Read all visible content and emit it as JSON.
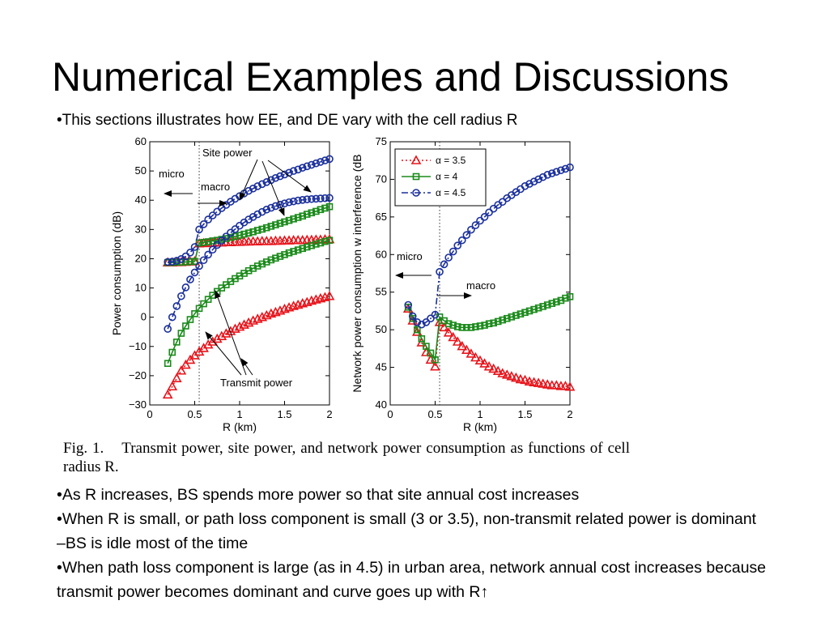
{
  "slide": {
    "title": "Numerical Examples and Discussions",
    "bullet_intro": "•This sections illustrates how EE, and DE vary with the cell radius R",
    "bullets": [
      "•As R increases, BS spends more power so that site annual cost increases",
      "•When R is small, or path loss component is small (3 or 3.5), non-transmit related power is dominant –BS is idle most of the time",
      "•When path loss component is large (as in 4.5) in urban area, network annual cost increases because transmit power becomes dominant and curve goes up with R↑"
    ]
  },
  "figure": {
    "caption_number": "Fig. 1.",
    "caption_text": "Transmit power, site power, and network power consumption as functions of cell radius R.",
    "annotations": {
      "left_micro": "micro",
      "left_macro": "macro",
      "site_power": "Site power",
      "transmit_power": "Transmit power",
      "right_micro": "micro",
      "right_macro": "macro"
    }
  },
  "colors": {
    "red": "#e8141b",
    "green": "#1a8a1a",
    "blue": "#1a2f9c",
    "dotted": "#333333"
  },
  "chart_data": [
    {
      "type": "line",
      "xlabel": "R (km)",
      "ylabel": "Power consumption (dB)",
      "xlim": [
        0,
        2
      ],
      "ylim": [
        -30,
        60
      ],
      "xticks": [
        "0",
        "0.5",
        "1",
        "1.5",
        "2"
      ],
      "yticks": [
        "−30",
        "−20",
        "−10",
        "0",
        "10",
        "20",
        "30",
        "40",
        "50",
        "60"
      ],
      "boundary_x": 0.55,
      "x": [
        0.2,
        0.25,
        0.3,
        0.35,
        0.4,
        0.45,
        0.5,
        0.55,
        0.6,
        0.65,
        0.7,
        0.75,
        0.8,
        0.85,
        0.9,
        0.95,
        1.0,
        1.05,
        1.1,
        1.15,
        1.2,
        1.25,
        1.3,
        1.35,
        1.4,
        1.45,
        1.5,
        1.55,
        1.6,
        1.65,
        1.7,
        1.75,
        1.8,
        1.85,
        1.9,
        1.95,
        2.0
      ],
      "series": [
        {
          "marker": "triangle",
          "color": "red",
          "group": "site",
          "values": [
            18.7,
            18.7,
            18.8,
            18.8,
            18.9,
            19.0,
            19.1,
            25.2,
            25.3,
            25.3,
            25.4,
            25.5,
            25.5,
            25.6,
            25.6,
            25.7,
            25.7,
            25.8,
            25.8,
            25.9,
            25.9,
            26.0,
            26.0,
            26.0,
            26.1,
            26.1,
            26.2,
            26.2,
            26.3,
            26.3,
            26.3,
            26.4,
            26.4,
            26.5,
            26.5,
            26.6,
            26.6
          ]
        },
        {
          "marker": "square",
          "color": "green",
          "group": "site",
          "values": [
            18.7,
            18.7,
            18.8,
            18.8,
            18.9,
            19.0,
            19.1,
            25.4,
            25.6,
            25.8,
            26.1,
            26.3,
            26.6,
            26.9,
            27.3,
            27.6,
            28.0,
            28.4,
            28.8,
            29.2,
            29.7,
            30.1,
            30.6,
            31.1,
            31.6,
            32.1,
            32.6,
            33.1,
            33.6,
            34.1,
            34.6,
            35.2,
            35.7,
            36.2,
            36.8,
            37.3,
            37.8
          ]
        },
        {
          "marker": "circle",
          "color": "blue",
          "group": "site",
          "values": [
            18.9,
            19.0,
            19.3,
            19.9,
            20.8,
            22.1,
            24.0,
            30.0,
            31.8,
            33.4,
            34.8,
            36.1,
            37.3,
            38.4,
            39.5,
            40.5,
            41.4,
            42.3,
            43.2,
            44.0,
            44.8,
            45.5,
            46.2,
            46.9,
            47.6,
            48.2,
            48.8,
            49.4,
            50.0,
            50.5,
            51.1,
            51.6,
            52.1,
            52.6,
            53.1,
            53.6,
            54.1
          ]
        },
        {
          "marker": "triangle",
          "color": "red",
          "group": "transmit",
          "values": [
            -26.5,
            -23.7,
            -20.9,
            -18.3,
            -16.3,
            -14.6,
            -13.1,
            -11.8,
            -10.6,
            -9.4,
            -8.4,
            -7.4,
            -6.5,
            -5.6,
            -4.8,
            -4.0,
            -3.3,
            -2.6,
            -1.9,
            -1.2,
            -0.6,
            0.0,
            0.6,
            1.2,
            1.7,
            2.2,
            2.8,
            3.3,
            3.8,
            4.2,
            4.7,
            5.1,
            5.6,
            6.0,
            6.4,
            6.8,
            7.2
          ]
        },
        {
          "marker": "square",
          "color": "green",
          "group": "transmit",
          "values": [
            -15.8,
            -12.0,
            -8.5,
            -5.5,
            -3.0,
            -0.8,
            1.2,
            3.0,
            4.6,
            6.1,
            7.5,
            8.8,
            10.0,
            11.1,
            12.2,
            13.2,
            14.1,
            15.0,
            15.9,
            16.7,
            17.5,
            18.2,
            18.9,
            19.6,
            20.2,
            20.8,
            21.4,
            22.0,
            22.5,
            23.0,
            23.5,
            24.0,
            24.5,
            25.0,
            25.4,
            25.9,
            26.3
          ]
        },
        {
          "marker": "circle",
          "color": "blue",
          "group": "transmit",
          "values": [
            -4.0,
            0.0,
            3.8,
            7.2,
            10.2,
            12.9,
            15.3,
            17.5,
            19.5,
            21.4,
            23.1,
            24.7,
            26.2,
            27.6,
            28.9,
            30.1,
            31.3,
            32.4,
            33.4,
            34.3,
            35.2,
            36.0,
            36.8,
            37.4,
            38.0,
            38.5,
            38.9,
            39.3,
            39.6,
            39.9,
            40.1,
            40.3,
            40.4,
            40.5,
            40.6,
            40.7,
            40.8
          ]
        }
      ]
    },
    {
      "type": "line",
      "xlabel": "R (km)",
      "ylabel": "Network power consumption w interference (dB",
      "xlim": [
        0,
        2
      ],
      "ylim": [
        40,
        75
      ],
      "xticks": [
        "0",
        "0.5",
        "1",
        "1.5",
        "2"
      ],
      "yticks": [
        "40",
        "45",
        "50",
        "55",
        "60",
        "65",
        "70",
        "75"
      ],
      "boundary_x": 0.55,
      "legend": [
        "α = 3.5",
        "α = 4",
        "α = 4.5"
      ],
      "legend_position": "top-left",
      "x": [
        0.2,
        0.25,
        0.3,
        0.35,
        0.4,
        0.45,
        0.5,
        0.55,
        0.6,
        0.65,
        0.7,
        0.75,
        0.8,
        0.85,
        0.9,
        0.95,
        1.0,
        1.05,
        1.1,
        1.15,
        1.2,
        1.25,
        1.3,
        1.35,
        1.4,
        1.45,
        1.5,
        1.55,
        1.6,
        1.65,
        1.7,
        1.75,
        1.8,
        1.85,
        1.9,
        1.95,
        2.0
      ],
      "series": [
        {
          "name": "α = 3.5",
          "marker": "triangle",
          "color": "red",
          "values": [
            52.8,
            51.2,
            49.7,
            48.3,
            47.0,
            46.0,
            45.1,
            51.0,
            50.3,
            49.6,
            49.0,
            48.4,
            47.8,
            47.3,
            46.8,
            46.3,
            45.9,
            45.5,
            45.1,
            44.8,
            44.5,
            44.2,
            44.0,
            43.8,
            43.6,
            43.4,
            43.3,
            43.1,
            43.0,
            42.9,
            42.8,
            42.7,
            42.6,
            42.6,
            42.5,
            42.5,
            42.4
          ]
        },
        {
          "name": "α = 4",
          "marker": "square",
          "color": "green",
          "values": [
            53.0,
            51.5,
            50.0,
            48.8,
            47.8,
            46.9,
            46.0,
            51.7,
            51.2,
            50.8,
            50.6,
            50.4,
            50.3,
            50.3,
            50.3,
            50.4,
            50.5,
            50.6,
            50.8,
            50.9,
            51.1,
            51.3,
            51.5,
            51.7,
            51.9,
            52.1,
            52.3,
            52.5,
            52.7,
            52.9,
            53.1,
            53.3,
            53.5,
            53.7,
            53.9,
            54.2,
            54.4
          ]
        },
        {
          "name": "α = 4.5",
          "marker": "circle",
          "color": "blue",
          "values": [
            53.3,
            51.8,
            51.0,
            50.7,
            51.0,
            51.5,
            52.0,
            57.7,
            58.7,
            59.6,
            60.4,
            61.2,
            61.9,
            62.6,
            63.3,
            63.9,
            64.5,
            65.0,
            65.6,
            66.1,
            66.6,
            67.0,
            67.5,
            67.9,
            68.3,
            68.7,
            69.1,
            69.4,
            69.7,
            70.0,
            70.3,
            70.6,
            70.8,
            71.0,
            71.2,
            71.4,
            71.6
          ]
        }
      ]
    }
  ]
}
